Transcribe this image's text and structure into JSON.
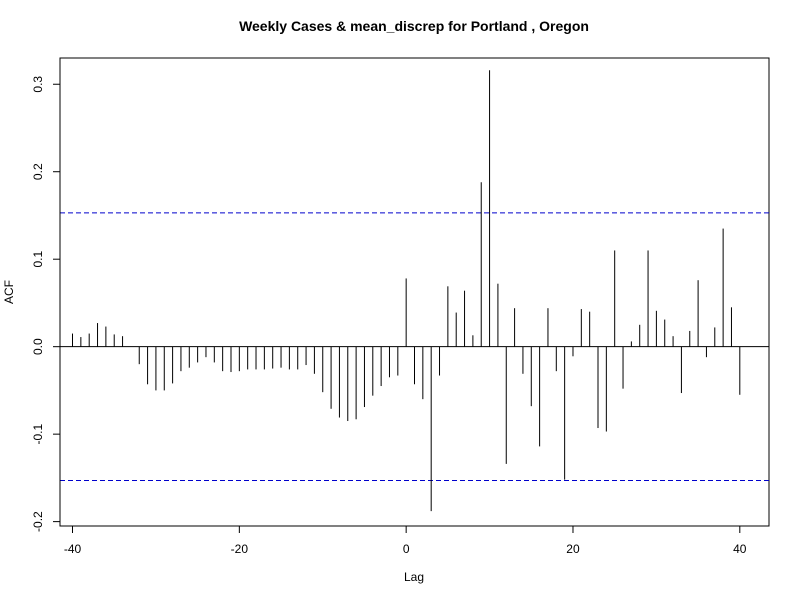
{
  "chart_data": {
    "type": "bar",
    "title": "Weekly Cases & mean_discrep for Portland , Oregon",
    "xlabel": "Lag",
    "ylabel": "ACF",
    "xlim": [
      -41.5,
      43.5
    ],
    "ylim": [
      -0.205,
      0.33
    ],
    "xticks": [
      -40,
      -20,
      0,
      20,
      40
    ],
    "yticks": [
      -0.2,
      -0.1,
      0.0,
      0.1,
      0.2,
      0.3
    ],
    "ytick_labels": [
      "-0.2",
      "-0.1",
      "0.0",
      "0.1",
      "0.2",
      "0.3"
    ],
    "ci_bounds": [
      0.153,
      -0.153
    ],
    "series": [
      {
        "x": [
          -40,
          -39,
          -38,
          -37,
          -36,
          -35,
          -34,
          -33,
          -32,
          -31,
          -30,
          -29,
          -28,
          -27,
          -26,
          -25,
          -24,
          -23,
          -22,
          -21,
          -20,
          -19,
          -18,
          -17,
          -16,
          -15,
          -14,
          -13,
          -12,
          -11,
          -10,
          -9,
          -8,
          -7,
          -6,
          -5,
          -4,
          -3,
          -2,
          -1,
          0,
          1,
          2,
          3,
          4,
          5,
          6,
          7,
          8,
          9,
          10,
          11,
          12,
          13,
          14,
          15,
          16,
          17,
          18,
          19,
          20,
          21,
          22,
          23,
          24,
          25,
          26,
          27,
          28,
          29,
          30,
          31,
          32,
          33,
          34,
          35,
          36,
          37,
          38,
          39,
          40
        ],
        "values": [
          0.015,
          0.011,
          0.015,
          0.027,
          0.023,
          0.014,
          0.012,
          0,
          -0.02,
          -0.043,
          -0.05,
          -0.05,
          -0.042,
          -0.028,
          -0.024,
          -0.018,
          -0.012,
          -0.018,
          -0.028,
          -0.029,
          -0.028,
          -0.026,
          -0.026,
          -0.026,
          -0.025,
          -0.024,
          -0.026,
          -0.026,
          -0.021,
          -0.031,
          -0.052,
          -0.071,
          -0.081,
          -0.085,
          -0.083,
          -0.069,
          -0.056,
          -0.045,
          -0.035,
          -0.033,
          0.078,
          -0.043,
          -0.06,
          -0.188,
          -0.033,
          0.069,
          0.039,
          0.064,
          0.013,
          0.188,
          0.316,
          0.072,
          -0.134,
          0.044,
          -0.031,
          -0.068,
          -0.114,
          0.044,
          -0.028,
          -0.152,
          -0.011,
          0.043,
          0.04,
          -0.093,
          -0.097,
          0.11,
          -0.048,
          0.006,
          0.025,
          0.11,
          0.041,
          0.031,
          0.012,
          -0.053,
          0.018,
          0.076,
          -0.012,
          0.022,
          0.135,
          0.045,
          -0.055
        ]
      }
    ],
    "colors": {
      "bars": "#000000",
      "ci_lines": "#0000cc",
      "zero_line": "#000000"
    },
    "grid": false,
    "legend": "none"
  }
}
